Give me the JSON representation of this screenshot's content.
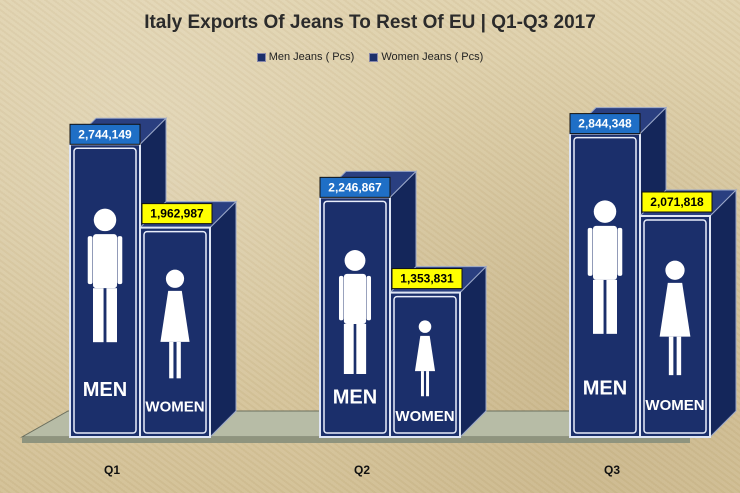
{
  "chart_data": {
    "type": "bar",
    "title": "Italy Exports Of Jeans To Rest Of EU | Q1-Q3 2017",
    "categories": [
      "Q1",
      "Q2",
      "Q3"
    ],
    "series": [
      {
        "name": "Men Jeans ( Pcs)",
        "values": [
          2744149,
          2246867,
          2844348
        ],
        "value_labels": [
          "2,744,149",
          "2,246,867",
          "2,844,348"
        ],
        "label_color": "#1f6fc6",
        "sign_text": "MEN"
      },
      {
        "name": "Women Jeans ( Pcs)",
        "values": [
          1962987,
          1353831,
          2071818
        ],
        "value_labels": [
          "1,962,987",
          "1,353,831",
          "2,071,818"
        ],
        "label_color": "#ffff00",
        "sign_text": "WOMEN"
      }
    ],
    "ylim": [
      0,
      3000000
    ],
    "grid": false,
    "legend_position": "top",
    "bar_color": "#1b2f6b"
  }
}
